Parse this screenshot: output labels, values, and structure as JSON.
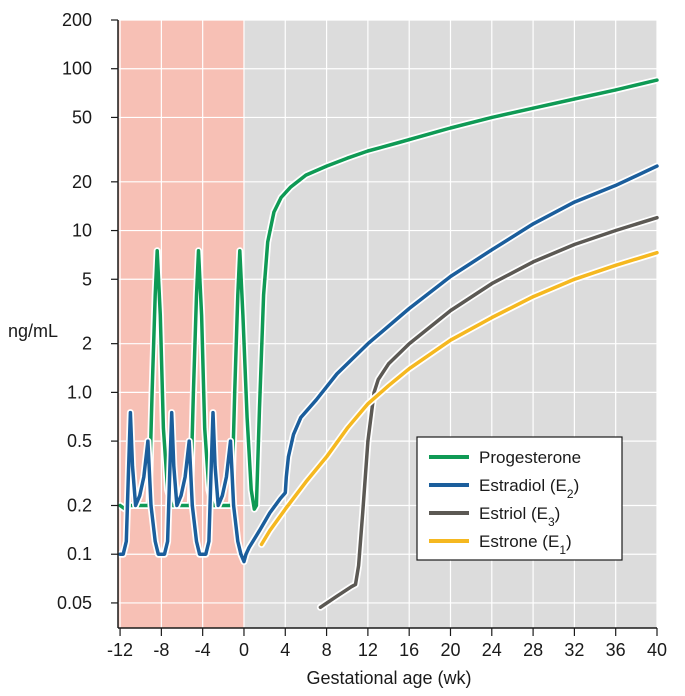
{
  "chart_data": {
    "type": "line",
    "xlabel": "Gestational age (wk)",
    "ylabel": "ng/mL",
    "yscale": "log",
    "xlim": [
      -12.2,
      40
    ],
    "ylim": [
      0.035,
      200
    ],
    "x_ticks": [
      -12,
      -8,
      -4,
      0,
      4,
      8,
      12,
      16,
      20,
      24,
      28,
      32,
      36,
      40
    ],
    "x_tick_labels": [
      "-12",
      "-8",
      "-4",
      "0",
      "4",
      "8",
      "12",
      "16",
      "20",
      "24",
      "28",
      "32",
      "36",
      "40"
    ],
    "y_ticks": [
      0.05,
      0.1,
      0.2,
      0.5,
      1.0,
      2,
      5,
      10,
      20,
      50,
      100,
      200
    ],
    "y_tick_labels": [
      "0.05",
      "0.1",
      "0.2",
      "0.5",
      "1.0",
      "2",
      "5",
      "10",
      "20",
      "50",
      "100",
      "200"
    ],
    "grid": true,
    "shaded_region": {
      "from": -12.2,
      "to": 0,
      "color": "#f7c0b5"
    },
    "background_color": "#dcdcdc",
    "legend_position": "lower-right",
    "series": [
      {
        "name": "Progesterone",
        "color": "#0f9a55",
        "points": [
          [
            -12,
            0.2
          ],
          [
            -11.5,
            0.19
          ],
          [
            -11,
            0.2
          ],
          [
            -10,
            0.2
          ],
          [
            -9.2,
            0.2
          ],
          [
            -8.9,
            1.0
          ],
          [
            -8.6,
            4.0
          ],
          [
            -8.4,
            7.5
          ],
          [
            -8.1,
            3.0
          ],
          [
            -7.8,
            0.6
          ],
          [
            -7.4,
            0.25
          ],
          [
            -7,
            0.2
          ],
          [
            -6,
            0.2
          ],
          [
            -5.2,
            0.2
          ],
          [
            -4.9,
            1.0
          ],
          [
            -4.6,
            4.0
          ],
          [
            -4.4,
            7.5
          ],
          [
            -4.1,
            3.0
          ],
          [
            -3.8,
            0.6
          ],
          [
            -3.4,
            0.25
          ],
          [
            -3,
            0.2
          ],
          [
            -2,
            0.2
          ],
          [
            -1.2,
            0.2
          ],
          [
            -0.9,
            1.0
          ],
          [
            -0.6,
            4.0
          ],
          [
            -0.4,
            7.5
          ],
          [
            -0.1,
            3.0
          ],
          [
            0.3,
            0.7
          ],
          [
            0.7,
            0.25
          ],
          [
            1.0,
            0.19
          ],
          [
            1.2,
            0.2
          ],
          [
            1.5,
            0.8
          ],
          [
            1.9,
            4.0
          ],
          [
            2.3,
            8.5
          ],
          [
            2.9,
            13
          ],
          [
            3.6,
            16
          ],
          [
            4.5,
            18.5
          ],
          [
            6,
            22
          ],
          [
            8,
            25
          ],
          [
            10,
            28
          ],
          [
            12,
            31
          ],
          [
            15,
            35
          ],
          [
            20,
            43
          ],
          [
            24,
            50
          ],
          [
            28,
            57
          ],
          [
            32,
            65
          ],
          [
            36,
            74
          ],
          [
            40,
            85
          ]
        ]
      },
      {
        "name": "Estradiol (E",
        "sub": "2",
        "color": "#1b5e9c",
        "points": [
          [
            -12,
            0.1
          ],
          [
            -11.7,
            0.1
          ],
          [
            -11.4,
            0.12
          ],
          [
            -11.2,
            0.3
          ],
          [
            -11,
            0.75
          ],
          [
            -10.8,
            0.35
          ],
          [
            -10.5,
            0.2
          ],
          [
            -10.1,
            0.23
          ],
          [
            -9.7,
            0.3
          ],
          [
            -9.3,
            0.5
          ],
          [
            -9,
            0.2
          ],
          [
            -8.6,
            0.12
          ],
          [
            -8.3,
            0.1
          ],
          [
            -7.7,
            0.1
          ],
          [
            -7.4,
            0.12
          ],
          [
            -7.2,
            0.3
          ],
          [
            -7,
            0.75
          ],
          [
            -6.8,
            0.35
          ],
          [
            -6.5,
            0.2
          ],
          [
            -6.1,
            0.23
          ],
          [
            -5.7,
            0.3
          ],
          [
            -5.3,
            0.5
          ],
          [
            -5,
            0.2
          ],
          [
            -4.6,
            0.12
          ],
          [
            -4.3,
            0.1
          ],
          [
            -3.7,
            0.1
          ],
          [
            -3.4,
            0.12
          ],
          [
            -3.2,
            0.3
          ],
          [
            -3,
            0.75
          ],
          [
            -2.8,
            0.35
          ],
          [
            -2.5,
            0.2
          ],
          [
            -2.1,
            0.23
          ],
          [
            -1.7,
            0.3
          ],
          [
            -1.3,
            0.5
          ],
          [
            -1,
            0.2
          ],
          [
            -0.6,
            0.12
          ],
          [
            -0.3,
            0.1
          ],
          [
            0,
            0.09
          ],
          [
            0.2,
            0.1
          ],
          [
            0.5,
            0.11
          ],
          [
            1.5,
            0.14
          ],
          [
            2.5,
            0.18
          ],
          [
            3.5,
            0.22
          ],
          [
            4,
            0.24
          ],
          [
            4.1,
            0.3
          ],
          [
            4.3,
            0.4
          ],
          [
            4.8,
            0.55
          ],
          [
            5.5,
            0.7
          ],
          [
            7,
            0.9
          ],
          [
            9,
            1.3
          ],
          [
            12,
            2
          ],
          [
            16,
            3.3
          ],
          [
            20,
            5.2
          ],
          [
            24,
            7.6
          ],
          [
            28,
            11
          ],
          [
            32,
            15
          ],
          [
            36,
            19
          ],
          [
            40,
            25
          ]
        ]
      },
      {
        "name": "Estriol (E",
        "sub": "3",
        "color": "#5c5954",
        "points": [
          [
            7.4,
            0.047
          ],
          [
            9,
            0.055
          ],
          [
            10.4,
            0.063
          ],
          [
            10.8,
            0.065
          ],
          [
            11.1,
            0.085
          ],
          [
            11.5,
            0.18
          ],
          [
            12,
            0.5
          ],
          [
            12.6,
            1.0
          ],
          [
            13,
            1.2
          ],
          [
            14,
            1.5
          ],
          [
            16,
            2.0
          ],
          [
            20,
            3.2
          ],
          [
            24,
            4.7
          ],
          [
            28,
            6.4
          ],
          [
            32,
            8.2
          ],
          [
            36,
            10
          ],
          [
            40,
            12
          ]
        ]
      },
      {
        "name": "Estrone (E",
        "sub": "1",
        "color": "#f5b820",
        "points": [
          [
            1.7,
            0.115
          ],
          [
            2.5,
            0.14
          ],
          [
            4,
            0.19
          ],
          [
            6,
            0.28
          ],
          [
            8,
            0.4
          ],
          [
            10,
            0.6
          ],
          [
            12,
            0.85
          ],
          [
            14,
            1.1
          ],
          [
            16,
            1.4
          ],
          [
            20,
            2.1
          ],
          [
            24,
            2.9
          ],
          [
            28,
            3.9
          ],
          [
            32,
            5
          ],
          [
            36,
            6.1
          ],
          [
            40,
            7.3
          ]
        ]
      }
    ]
  }
}
